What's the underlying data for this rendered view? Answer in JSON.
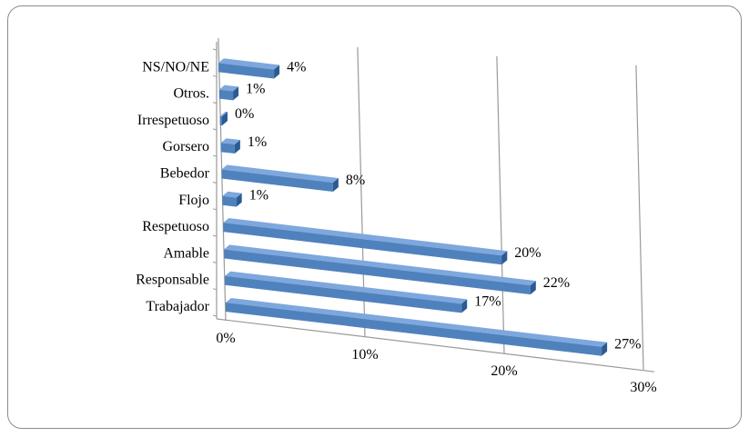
{
  "chart_data": {
    "type": "bar",
    "orientation": "horizontal",
    "style": "3d",
    "categories": [
      "Trabajador",
      "Responsable",
      "Amable",
      "Respetuoso",
      "Flojo",
      "Bebedor",
      "Gorsero",
      "Irrespetuoso",
      "Otros.",
      "NS/NO/NE"
    ],
    "values": [
      27,
      17,
      22,
      20,
      1,
      8,
      1,
      0,
      1,
      4
    ],
    "value_labels": [
      "27%",
      "17%",
      "22%",
      "20%",
      "1%",
      "8%",
      "1%",
      "0%",
      "1%",
      "4%"
    ],
    "x_ticks": [
      "0%",
      "10%",
      "20%",
      "30%"
    ],
    "xlim": [
      0,
      30
    ],
    "title": "",
    "xlabel": "",
    "ylabel": "",
    "grid": true,
    "legend": "none",
    "colors": {
      "bar": "#4f81bd",
      "bar_dark": "#2c5a92",
      "bar_light": "#7da7dd",
      "grid": "#9a9a9a"
    }
  }
}
